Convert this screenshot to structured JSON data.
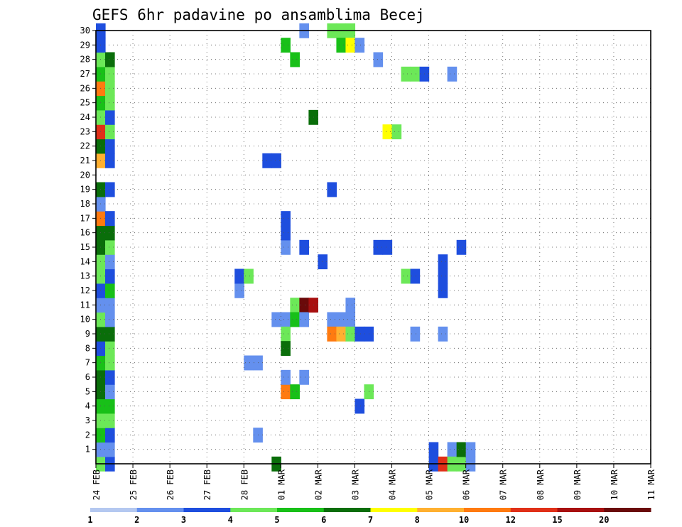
{
  "chart_data": {
    "type": "heatmap",
    "title": "GEFS 6hr padavine po ansamblima Becej",
    "xlabel": "",
    "ylabel": "",
    "x_labels": [
      "24 FEB",
      "25 FEB",
      "26 FEB",
      "27 FEB",
      "28 FEB",
      "01 MAR",
      "02 MAR",
      "03 MAR",
      "04 MAR",
      "05 MAR",
      "06 MAR",
      "07 MAR",
      "08 MAR",
      "09 MAR",
      "10 MAR",
      "11 MAR"
    ],
    "x_range": [
      0,
      15
    ],
    "x_step_days": 0.25,
    "y_range": [
      0,
      30
    ],
    "y_ticks": [
      1,
      2,
      3,
      4,
      5,
      6,
      7,
      8,
      9,
      10,
      11,
      12,
      13,
      14,
      15,
      16,
      17,
      18,
      19,
      20,
      21,
      22,
      23,
      24,
      25,
      26,
      27,
      28,
      29,
      30
    ],
    "grid": true,
    "colorbar": {
      "levels": [
        "1",
        "2",
        "3",
        "4",
        "5",
        "6",
        "7",
        "8",
        "10",
        "12",
        "15",
        "20"
      ],
      "colors": [
        "#b4c8f0",
        "#6490ee",
        "#1e4ede",
        "#6ce858",
        "#18c018",
        "#0a6e0a",
        "#ffff00",
        "#ffb030",
        "#ff7a10",
        "#e03018",
        "#a81010",
        "#6a0a0a"
      ],
      "placement": "bottom"
    },
    "cells": [
      [
        0,
        0,
        3
      ],
      [
        0,
        1,
        1
      ],
      [
        0,
        2,
        4
      ],
      [
        0,
        3,
        3
      ],
      [
        0,
        4,
        4
      ],
      [
        0,
        5,
        5
      ],
      [
        0,
        6,
        5
      ],
      [
        0,
        7,
        4
      ],
      [
        0,
        8,
        2
      ],
      [
        0,
        9,
        5
      ],
      [
        0,
        10,
        3
      ],
      [
        0,
        11,
        1
      ],
      [
        0,
        12,
        2
      ],
      [
        0,
        13,
        3
      ],
      [
        0,
        14,
        3
      ],
      [
        0,
        15,
        5
      ],
      [
        0,
        16,
        5
      ],
      [
        0,
        17,
        8
      ],
      [
        0,
        18,
        1
      ],
      [
        0,
        19,
        5
      ],
      [
        0,
        21,
        7
      ],
      [
        0,
        22,
        5
      ],
      [
        0,
        23,
        9
      ],
      [
        0,
        24,
        3
      ],
      [
        0,
        25,
        4
      ],
      [
        0,
        26,
        8
      ],
      [
        0,
        27,
        4
      ],
      [
        0,
        28,
        3
      ],
      [
        0,
        29,
        2
      ],
      [
        0,
        30,
        2
      ],
      [
        1,
        0,
        2
      ],
      [
        1,
        1,
        1
      ],
      [
        1,
        2,
        2
      ],
      [
        1,
        3,
        3
      ],
      [
        1,
        4,
        4
      ],
      [
        1,
        5,
        1
      ],
      [
        1,
        6,
        2
      ],
      [
        1,
        7,
        3
      ],
      [
        1,
        8,
        3
      ],
      [
        1,
        9,
        5
      ],
      [
        1,
        10,
        1
      ],
      [
        1,
        11,
        1
      ],
      [
        1,
        12,
        4
      ],
      [
        1,
        13,
        2
      ],
      [
        1,
        14,
        1
      ],
      [
        1,
        15,
        3
      ],
      [
        1,
        16,
        5
      ],
      [
        1,
        17,
        2
      ],
      [
        1,
        19,
        2
      ],
      [
        1,
        21,
        2
      ],
      [
        1,
        22,
        2
      ],
      [
        1,
        23,
        3
      ],
      [
        1,
        24,
        2
      ],
      [
        1,
        25,
        3
      ],
      [
        1,
        26,
        3
      ],
      [
        1,
        27,
        3
      ],
      [
        1,
        28,
        5
      ],
      [
        15,
        12,
        1
      ],
      [
        15,
        13,
        2
      ],
      [
        16,
        13,
        3
      ],
      [
        16,
        7,
        1
      ],
      [
        17,
        7,
        1
      ],
      [
        17,
        2,
        1
      ],
      [
        18,
        21,
        2
      ],
      [
        19,
        21,
        2
      ],
      [
        19,
        0,
        5
      ],
      [
        19,
        10,
        1
      ],
      [
        20,
        10,
        1
      ],
      [
        20,
        5,
        8
      ],
      [
        20,
        6,
        1
      ],
      [
        20,
        9,
        3
      ],
      [
        20,
        8,
        5
      ],
      [
        20,
        15,
        1
      ],
      [
        20,
        16,
        2
      ],
      [
        20,
        17,
        2
      ],
      [
        20,
        29,
        4
      ],
      [
        21,
        5,
        4
      ],
      [
        21,
        11,
        3
      ],
      [
        21,
        10,
        4
      ],
      [
        21,
        28,
        4
      ],
      [
        22,
        11,
        11
      ],
      [
        22,
        10,
        1
      ],
      [
        22,
        15,
        2
      ],
      [
        22,
        6,
        1
      ],
      [
        22,
        30,
        1
      ],
      [
        23,
        11,
        10
      ],
      [
        23,
        24,
        5
      ],
      [
        24,
        14,
        2
      ],
      [
        25,
        30,
        3
      ],
      [
        25,
        19,
        2
      ],
      [
        25,
        10,
        1
      ],
      [
        25,
        9,
        8
      ],
      [
        26,
        30,
        3
      ],
      [
        26,
        10,
        1
      ],
      [
        26,
        9,
        7
      ],
      [
        26,
        29,
        4
      ],
      [
        27,
        30,
        3
      ],
      [
        27,
        11,
        1
      ],
      [
        27,
        10,
        1
      ],
      [
        27,
        9,
        3
      ],
      [
        27,
        29,
        6
      ],
      [
        28,
        9,
        2
      ],
      [
        28,
        29,
        1
      ],
      [
        28,
        4,
        2
      ],
      [
        29,
        9,
        2
      ],
      [
        29,
        5,
        3
      ],
      [
        30,
        28,
        1
      ],
      [
        30,
        15,
        2
      ],
      [
        31,
        15,
        2
      ],
      [
        31,
        23,
        6
      ],
      [
        32,
        23,
        3
      ],
      [
        33,
        27,
        3
      ],
      [
        33,
        13,
        3
      ],
      [
        34,
        27,
        3
      ],
      [
        34,
        13,
        2
      ],
      [
        34,
        9,
        1
      ],
      [
        35,
        27,
        2
      ],
      [
        36,
        1,
        2
      ],
      [
        36,
        0,
        2
      ],
      [
        37,
        0,
        9
      ],
      [
        37,
        9,
        1
      ],
      [
        37,
        12,
        2
      ],
      [
        37,
        13,
        2
      ],
      [
        37,
        14,
        2
      ],
      [
        38,
        27,
        1
      ],
      [
        38,
        1,
        1
      ],
      [
        38,
        0,
        3
      ],
      [
        39,
        0,
        3
      ],
      [
        39,
        1,
        5
      ],
      [
        39,
        15,
        2
      ],
      [
        40,
        1,
        1
      ],
      [
        40,
        0,
        1
      ]
    ]
  }
}
